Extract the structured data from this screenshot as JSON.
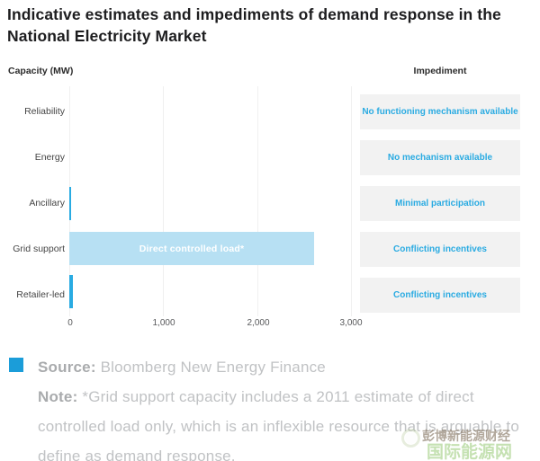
{
  "title": "Indicative estimates and impediments of demand response in the National Electricity Market",
  "chart": {
    "capacity_header": "Capacity (MW)",
    "impediment_header": "Impediment"
  },
  "chart_data": {
    "type": "bar",
    "orientation": "horizontal",
    "title": "Indicative estimates and impediments of demand response in the National Electricity Market",
    "xlabel": "Capacity (MW)",
    "unit": "MW",
    "categories": [
      "Reliability",
      "Energy",
      "Ancillary",
      "Grid support",
      "Retailer-led"
    ],
    "values": [
      0,
      0,
      20,
      2600,
      40
    ],
    "bar_labels": [
      "",
      "",
      "",
      "Direct controlled load*",
      ""
    ],
    "impediments": [
      "No functioning mechanism available",
      "No mechanism available",
      "Minimal participation",
      "Conflicting incentives",
      "Conflicting incentives"
    ],
    "x_ticks": [
      "0",
      "1,000",
      "2,000",
      "3,000"
    ],
    "xlim": [
      0,
      3000
    ],
    "grid": "vertical-light",
    "legend_position": "none"
  },
  "footer": {
    "source_label": "Source:",
    "source_text": " Bloomberg New Energy Finance",
    "note_label": "Note:",
    "note_text": " *Grid support capacity includes a 2011 estimate of direct controlled load only, which is an inflexible resource that is arguable to define as demand response."
  },
  "watermark": {
    "line1": "彭博新能源财经",
    "line2": "国际能源网"
  },
  "colors": {
    "accent_blue": "#29abe2",
    "light_blue": "#b7e0f3",
    "impediment_box_bg": "#f2f2f2",
    "legend_square": "#1b9dd9",
    "title_text": "#1d1d1f",
    "footer_text": "#c0c2c4"
  }
}
